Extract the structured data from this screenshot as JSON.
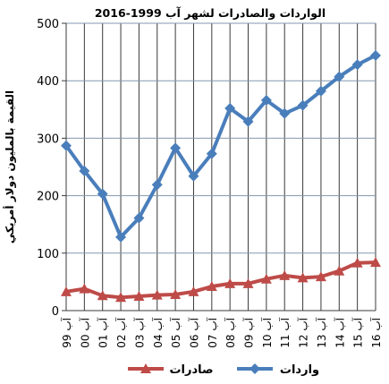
{
  "chart_data": {
    "type": "line",
    "title": "الواردات والصادرات لشهر آب 1999-2016",
    "ylabel": "القيمة بالمليون دولار أمريكي",
    "xlabel": "",
    "categories": [
      "آب 99",
      "آب 00",
      "آب 01",
      "آب 02",
      "آب 03",
      "آب 04",
      "آب 05",
      "آب 06",
      "آب 07",
      "آب 08",
      "آب 09",
      "آب 10",
      "آب 11",
      "آب 12",
      "آب 13",
      "آب 14",
      "آب 15",
      "آب 16"
    ],
    "ylim": [
      0,
      500
    ],
    "yticks": [
      0,
      100,
      200,
      300,
      400,
      500
    ],
    "grid": true,
    "legend_position": "bottom",
    "series": [
      {
        "name": "واردات",
        "color": "#4a7ebb",
        "marker": "diamond",
        "values": [
          287,
          243,
          203,
          128,
          161,
          219,
          283,
          234,
          273,
          352,
          329,
          366,
          343,
          357,
          382,
          407,
          428,
          444
        ]
      },
      {
        "name": "صادرات",
        "color": "#be4b48",
        "marker": "triangle",
        "values": [
          33,
          38,
          26,
          23,
          25,
          27,
          28,
          33,
          42,
          47,
          47,
          55,
          61,
          57,
          59,
          69,
          83,
          84
        ]
      }
    ]
  }
}
